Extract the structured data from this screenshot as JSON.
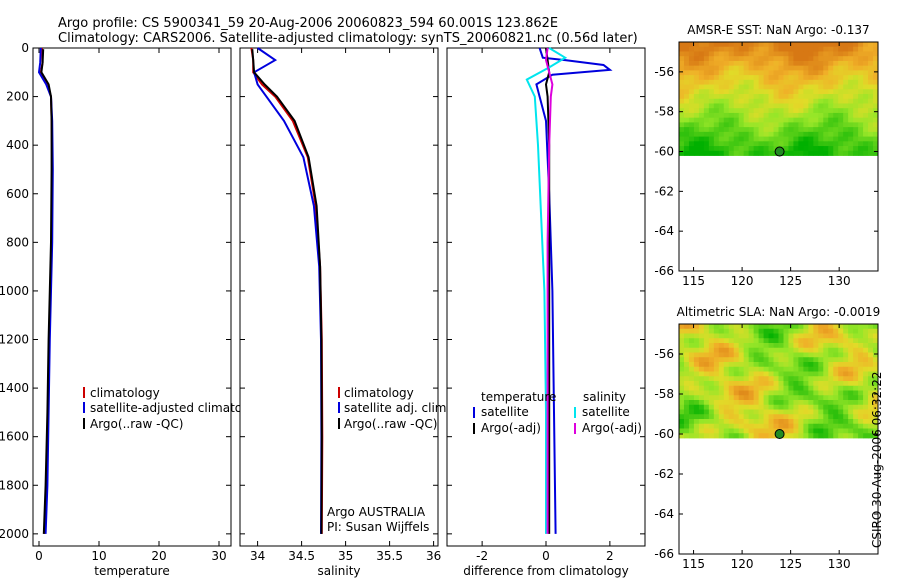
{
  "header": {
    "line1": "Argo profile: CS 5900341_59 20-Aug-2006 20060823_594 60.001S 123.862E",
    "line2": "Climatology: CARS2006. Satellite-adjusted climatology: synTS_20060821.nc (0.56d later)"
  },
  "stamp": "CSIRO 30-Aug-2006 06:32:22",
  "colors": {
    "climatology": "#cc0000",
    "satellite": "#0000dd",
    "argo": "#000000",
    "sal_satellite": "#00e5ee",
    "sal_argo": "#dd00dd",
    "marker": "#228b22"
  },
  "chart_data": [
    {
      "type": "line",
      "title": "",
      "xlabel": "temperature",
      "ylabel": "",
      "xlim": [
        -1,
        32
      ],
      "ylim": [
        2050,
        0
      ],
      "xticks": [
        "0",
        "10",
        "20",
        "30"
      ],
      "xtick_values": [
        0,
        10,
        20,
        30
      ],
      "yticks": [
        "0",
        "200",
        "400",
        "600",
        "800",
        "1000",
        "1200",
        "1400",
        "1600",
        "1800",
        "2000"
      ],
      "ytick_values": [
        0,
        200,
        400,
        600,
        800,
        1000,
        1200,
        1400,
        1600,
        1800,
        2000
      ],
      "legend": [
        "climatology",
        "satellite-adjusted climatology",
        "Argo(..raw -QC)"
      ],
      "series": [
        {
          "name": "climatology",
          "key": "climatology",
          "x": [
            0.5,
            0.6,
            0.3,
            1.3,
            2.0,
            2.1,
            2.2,
            2.1,
            1.9,
            1.7,
            1.5,
            1.2,
            0.9
          ],
          "y": [
            0,
            60,
            100,
            150,
            200,
            300,
            500,
            800,
            1000,
            1200,
            1500,
            1800,
            2000
          ]
        },
        {
          "name": "satellite-adjusted climatology",
          "key": "satellite",
          "x": [
            0.3,
            0.2,
            0.0,
            1.2,
            2.0,
            2.2,
            2.3,
            2.2,
            2.0,
            1.8,
            1.6,
            1.4,
            1.1
          ],
          "y": [
            0,
            60,
            100,
            150,
            200,
            300,
            500,
            800,
            1000,
            1200,
            1500,
            1800,
            2000
          ]
        },
        {
          "name": "Argo(..raw -QC)",
          "key": "argo",
          "x": [
            0.7,
            0.6,
            0.4,
            1.6,
            2.0,
            2.1,
            2.1,
            2.0,
            1.8,
            1.6,
            1.4,
            1.1,
            0.8
          ],
          "y": [
            5,
            60,
            100,
            150,
            200,
            300,
            500,
            800,
            1000,
            1200,
            1500,
            1800,
            2000
          ]
        }
      ]
    },
    {
      "type": "line",
      "title": "",
      "xlabel": "salinity",
      "ylabel": "",
      "xlim": [
        33.8,
        36.05
      ],
      "ylim": [
        2050,
        0
      ],
      "xticks": [
        "34",
        "34.5",
        "35",
        "35.5",
        "36"
      ],
      "xtick_values": [
        34,
        34.5,
        35,
        35.5,
        36
      ],
      "legend": [
        "climatology",
        "satellite adj. clim.",
        "Argo(..raw -QC)"
      ],
      "annotations": [
        "Argo AUSTRALIA",
        "PI: Susan Wijffels"
      ],
      "series": [
        {
          "name": "climatology",
          "key": "climatology",
          "x": [
            33.93,
            33.95,
            33.95,
            34.05,
            34.2,
            34.4,
            34.57,
            34.66,
            34.71,
            34.73,
            34.735,
            34.73
          ],
          "y": [
            0,
            50,
            100,
            150,
            200,
            300,
            450,
            650,
            900,
            1200,
            1600,
            2000
          ]
        },
        {
          "name": "satellite adj. clim.",
          "key": "satellite",
          "x": [
            34.0,
            34.2,
            33.96,
            34.0,
            34.1,
            34.3,
            34.52,
            34.64,
            34.7,
            34.72,
            34.725,
            34.72
          ],
          "y": [
            0,
            50,
            100,
            150,
            200,
            300,
            450,
            650,
            900,
            1200,
            1600,
            2000
          ]
        },
        {
          "name": "Argo(..raw -QC)",
          "key": "argo",
          "x": [
            33.94,
            33.95,
            33.96,
            34.08,
            34.22,
            34.42,
            34.58,
            34.67,
            34.71,
            34.725,
            34.73,
            34.725
          ],
          "y": [
            5,
            50,
            100,
            150,
            200,
            300,
            450,
            650,
            900,
            1200,
            1600,
            2000
          ]
        }
      ]
    },
    {
      "type": "line",
      "title": "",
      "xlabel": "difference from climatology",
      "ylabel": "",
      "xlim": [
        -3.1,
        3.1
      ],
      "ylim": [
        2050,
        0
      ],
      "xticks": [
        "-2",
        "0",
        "2"
      ],
      "xtick_values": [
        -2,
        0,
        2
      ],
      "legend": [
        "temperature",
        "satellite",
        "Argo(-adj)",
        "salinity",
        "satellite",
        "Argo(-adj)"
      ],
      "series": [
        {
          "name": "temperature satellite",
          "key": "satellite",
          "x": [
            -0.2,
            -0.1,
            0.6,
            1.8,
            2.0,
            0.2,
            -0.3,
            -0.2,
            0.0,
            0.1,
            0.2,
            0.25,
            0.3
          ],
          "y": [
            0,
            40,
            50,
            70,
            90,
            110,
            150,
            200,
            300,
            600,
            1000,
            1500,
            2000
          ]
        },
        {
          "name": "temperature Argo(-adj)",
          "key": "argo",
          "x": [
            0.0,
            0.05,
            0.1,
            0.0,
            0.05,
            0.1,
            0.1,
            0.1,
            0.1
          ],
          "y": [
            0,
            50,
            100,
            150,
            200,
            400,
            800,
            1400,
            2000
          ]
        },
        {
          "name": "salinity satellite",
          "key": "sal_satellite",
          "x": [
            0.1,
            0.6,
            0.1,
            -0.6,
            -0.35,
            -0.25,
            -0.15,
            -0.05,
            0.0,
            0.0
          ],
          "y": [
            0,
            40,
            80,
            130,
            200,
            400,
            700,
            1000,
            1500,
            2000
          ]
        },
        {
          "name": "salinity Argo(-adj)",
          "key": "sal_argo",
          "x": [
            0.05,
            0.0,
            0.1,
            0.2,
            0.15,
            0.1,
            0.05,
            0.05,
            0.05
          ],
          "y": [
            0,
            50,
            100,
            150,
            200,
            400,
            800,
            1400,
            2000
          ]
        }
      ]
    },
    {
      "type": "heatmap",
      "title": "AMSR-E SST: NaN Argo: -0.137",
      "xlabel": "",
      "ylabel": "",
      "xlim": [
        113.5,
        134
      ],
      "ylim": [
        -66,
        -54.5
      ],
      "xticks": [
        "115",
        "120",
        "125",
        "130"
      ],
      "xtick_values": [
        115,
        120,
        125,
        130
      ],
      "yticks": [
        "-56",
        "-58",
        "-60",
        "-62",
        "-64",
        "-66"
      ],
      "ytick_values": [
        -56,
        -58,
        -60,
        -62,
        -64,
        -66
      ],
      "data_lat_range": [
        -60.2,
        -54.5
      ],
      "marker": {
        "lon": 123.862,
        "lat": -60.001
      }
    },
    {
      "type": "heatmap",
      "title": "Altimetric SLA: NaN Argo: -0.0019",
      "xlabel": "",
      "ylabel": "",
      "xlim": [
        113.5,
        134
      ],
      "ylim": [
        -66,
        -54.5
      ],
      "xticks": [
        "115",
        "120",
        "125",
        "130"
      ],
      "xtick_values": [
        115,
        120,
        125,
        130
      ],
      "yticks": [
        "-56",
        "-58",
        "-60",
        "-62",
        "-64",
        "-66"
      ],
      "ytick_values": [
        -56,
        -58,
        -60,
        -62,
        -64,
        -66
      ],
      "data_lat_range": [
        -60.2,
        -54.5
      ],
      "marker": {
        "lon": 123.862,
        "lat": -60.001
      }
    }
  ]
}
